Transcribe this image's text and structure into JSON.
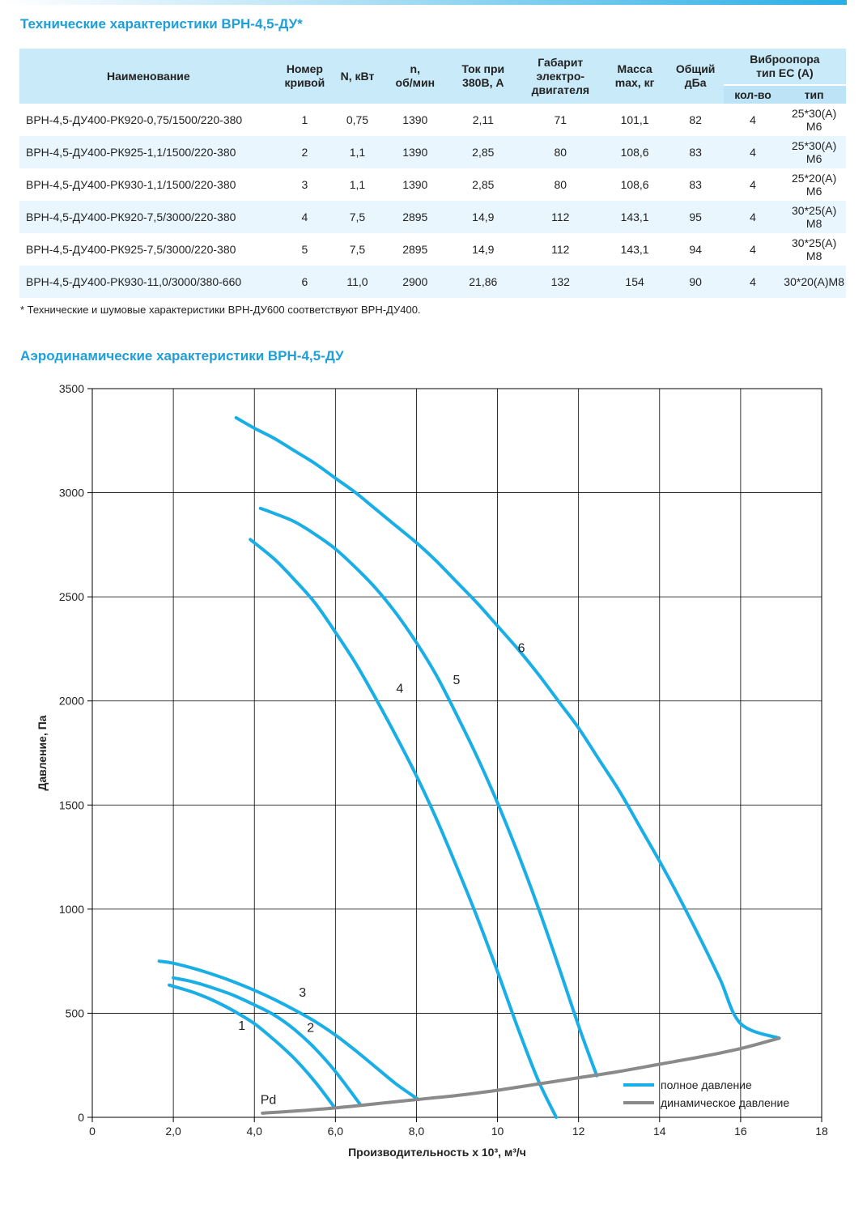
{
  "section1_title": "Технические характеристики ВРН-4,5-ДУ*",
  "table": {
    "headers": {
      "name": "Наименование",
      "curve": "Номер\nкривой",
      "power": "N, кВт",
      "rpm": "n,\nоб/мин",
      "current": "Ток при\n380В, А",
      "motor": "Габарит\nэлектро-\nдвигателя",
      "mass": "Масса\nmax, кг",
      "noise": "Общий\nдБа",
      "vibro": "Виброопора\nтип ЕС (А)",
      "vibro_qty": "кол-во",
      "vibro_type": "тип"
    },
    "rows": [
      [
        "ВРН-4,5-ДУ400-РК920-0,75/1500/220-380",
        "1",
        "0,75",
        "1390",
        "2,11",
        "71",
        "101,1",
        "82",
        "4",
        "25*30(А) М6"
      ],
      [
        "ВРН-4,5-ДУ400-РК925-1,1/1500/220-380",
        "2",
        "1,1",
        "1390",
        "2,85",
        "80",
        "108,6",
        "83",
        "4",
        "25*30(А) М6"
      ],
      [
        "ВРН-4,5-ДУ400-РК930-1,1/1500/220-380",
        "3",
        "1,1",
        "1390",
        "2,85",
        "80",
        "108,6",
        "83",
        "4",
        "25*20(А) М6"
      ],
      [
        "ВРН-4,5-ДУ400-РК920-7,5/3000/220-380",
        "4",
        "7,5",
        "2895",
        "14,9",
        "112",
        "143,1",
        "95",
        "4",
        "30*25(А) М8"
      ],
      [
        "ВРН-4,5-ДУ400-РК925-7,5/3000/220-380",
        "5",
        "7,5",
        "2895",
        "14,9",
        "112",
        "143,1",
        "94",
        "4",
        "30*25(А) М8"
      ],
      [
        "ВРН-4,5-ДУ400-РК930-11,0/3000/380-660",
        "6",
        "11,0",
        "2900",
        "21,86",
        "132",
        "154",
        "90",
        "4",
        "30*20(А)М8"
      ]
    ]
  },
  "footnote": "* Технические и шумовые характеристики ВРН-ДУ600 соответствуют ВРН-ДУ400.",
  "section2_title": "Аэродинамические характеристики ВРН-4,5-ДУ",
  "colors": {
    "accent": "#1f9fd8",
    "full_pressure": "#1aaee6",
    "dynamic_pressure": "#8a8a8a"
  },
  "chart_data": {
    "type": "line",
    "xlabel": "Производительность х 10³, м³/ч",
    "ylabel": "Давление, Па",
    "xlim": [
      0,
      18
    ],
    "ylim": [
      0,
      3500
    ],
    "x_ticks": [
      0,
      2,
      4,
      6,
      8,
      10,
      12,
      14,
      16,
      18
    ],
    "x_tick_labels": [
      "0",
      "2,0",
      "4,0",
      "6,0",
      "8,0",
      "10",
      "12",
      "14",
      "16",
      "18"
    ],
    "y_ticks": [
      0,
      500,
      1000,
      1500,
      2000,
      2500,
      3000,
      3500
    ],
    "y_tick_labels": [
      "0",
      "500",
      "1000",
      "1500",
      "2000",
      "2500",
      "3000",
      "3500"
    ],
    "grid": true,
    "legend_position": "bottom-right",
    "legend": [
      "полное давление",
      "динамическое давление"
    ],
    "series": [
      {
        "name": "1",
        "label_at": [
          3.6,
          420
        ],
        "points": [
          [
            1.9,
            635
          ],
          [
            2.5,
            600
          ],
          [
            3.0,
            560
          ],
          [
            3.5,
            510
          ],
          [
            4.0,
            450
          ],
          [
            4.5,
            370
          ],
          [
            5.0,
            280
          ],
          [
            5.5,
            170
          ],
          [
            5.95,
            55
          ]
        ]
      },
      {
        "name": "2",
        "label_at": [
          5.3,
          410
        ],
        "points": [
          [
            2.0,
            670
          ],
          [
            2.5,
            650
          ],
          [
            3.0,
            620
          ],
          [
            3.5,
            585
          ],
          [
            4.0,
            540
          ],
          [
            4.5,
            490
          ],
          [
            5.0,
            420
          ],
          [
            5.5,
            330
          ],
          [
            6.0,
            220
          ],
          [
            6.6,
            65
          ]
        ]
      },
      {
        "name": "3",
        "label_at": [
          5.1,
          580
        ],
        "points": [
          [
            1.65,
            750
          ],
          [
            2.0,
            740
          ],
          [
            2.5,
            715
          ],
          [
            3.0,
            685
          ],
          [
            3.5,
            650
          ],
          [
            4.0,
            610
          ],
          [
            4.5,
            565
          ],
          [
            5.0,
            515
          ],
          [
            5.5,
            460
          ],
          [
            6.0,
            395
          ],
          [
            6.5,
            320
          ],
          [
            7.0,
            240
          ],
          [
            7.5,
            160
          ],
          [
            8.05,
            85
          ]
        ]
      },
      {
        "name": "4",
        "label_at": [
          7.5,
          2040
        ],
        "points": [
          [
            3.9,
            2775
          ],
          [
            4.5,
            2680
          ],
          [
            5.0,
            2580
          ],
          [
            5.5,
            2470
          ],
          [
            6.0,
            2330
          ],
          [
            6.5,
            2180
          ],
          [
            7.0,
            2010
          ],
          [
            7.5,
            1830
          ],
          [
            8.0,
            1640
          ],
          [
            8.5,
            1430
          ],
          [
            9.0,
            1200
          ],
          [
            9.5,
            960
          ],
          [
            10.0,
            700
          ],
          [
            10.5,
            430
          ],
          [
            11.0,
            180
          ],
          [
            11.45,
            0
          ]
        ]
      },
      {
        "name": "5",
        "label_at": [
          8.9,
          2080
        ],
        "points": [
          [
            4.15,
            2925
          ],
          [
            4.5,
            2900
          ],
          [
            5.0,
            2860
          ],
          [
            5.5,
            2800
          ],
          [
            6.0,
            2730
          ],
          [
            6.5,
            2640
          ],
          [
            7.0,
            2540
          ],
          [
            7.5,
            2420
          ],
          [
            8.0,
            2280
          ],
          [
            8.5,
            2120
          ],
          [
            9.0,
            1930
          ],
          [
            9.5,
            1730
          ],
          [
            10.0,
            1510
          ],
          [
            10.5,
            1270
          ],
          [
            11.0,
            1010
          ],
          [
            11.5,
            730
          ],
          [
            12.0,
            440
          ],
          [
            12.45,
            200
          ]
        ]
      },
      {
        "name": "6",
        "label_at": [
          10.5,
          2235
        ],
        "points": [
          [
            3.55,
            3360
          ],
          [
            4.0,
            3310
          ],
          [
            4.5,
            3260
          ],
          [
            5.0,
            3200
          ],
          [
            5.5,
            3140
          ],
          [
            6.0,
            3070
          ],
          [
            6.5,
            3000
          ],
          [
            7.0,
            2920
          ],
          [
            7.5,
            2840
          ],
          [
            8.0,
            2760
          ],
          [
            8.5,
            2670
          ],
          [
            9.0,
            2570
          ],
          [
            9.5,
            2470
          ],
          [
            10.0,
            2360
          ],
          [
            10.5,
            2250
          ],
          [
            11.0,
            2130
          ],
          [
            11.5,
            2000
          ],
          [
            12.0,
            1870
          ],
          [
            12.5,
            1720
          ],
          [
            13.0,
            1570
          ],
          [
            13.5,
            1400
          ],
          [
            14.0,
            1230
          ],
          [
            14.5,
            1050
          ],
          [
            15.0,
            860
          ],
          [
            15.5,
            660
          ],
          [
            16.0,
            450
          ],
          [
            16.95,
            380
          ]
        ]
      },
      {
        "name": "Pd",
        "label_at": [
          4.15,
          65
        ],
        "points": [
          [
            4.2,
            20
          ],
          [
            5.0,
            30
          ],
          [
            6.0,
            45
          ],
          [
            7.0,
            65
          ],
          [
            8.0,
            85
          ],
          [
            9.0,
            105
          ],
          [
            10.0,
            130
          ],
          [
            11.0,
            160
          ],
          [
            12.0,
            190
          ],
          [
            13.0,
            220
          ],
          [
            14.0,
            255
          ],
          [
            15.0,
            290
          ],
          [
            16.0,
            330
          ],
          [
            16.95,
            380
          ]
        ]
      }
    ]
  }
}
